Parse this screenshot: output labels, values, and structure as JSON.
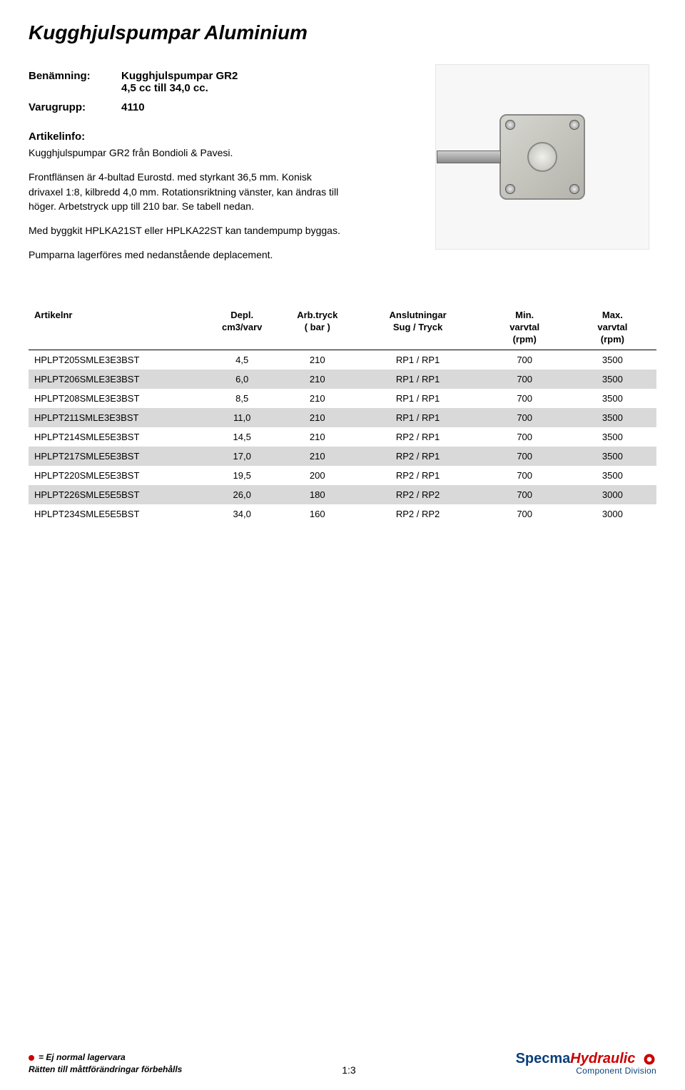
{
  "title": "Kugghjulspumpar Aluminium",
  "meta": {
    "benamning_label": "Benämning:",
    "benamning_line1": "Kugghjulspumpar GR2",
    "benamning_line2": "4,5 cc till 34,0 cc.",
    "varugrupp_label": "Varugrupp:",
    "varugrupp_value": "4110"
  },
  "info": {
    "heading": "Artikelinfo:",
    "p1": "Kugghjulspumpar GR2 från Bondioli & Pavesi.",
    "p2": "Frontflänsen är 4-bultad Eurostd. med styrkant 36,5 mm. Konisk drivaxel 1:8, kilbredd 4,0 mm. Rotationsriktning vänster, kan ändras till höger. Arbetstryck upp till 210 bar. Se tabell nedan.",
    "p3": "Med byggkit HPLKA21ST eller HPLKA22ST kan tandempump byggas.",
    "p4": "Pumparna lagerföres med nedanstående deplacement."
  },
  "table": {
    "columns": [
      {
        "line1": "Artikelnr",
        "line2": "",
        "align": "left",
        "width": "28%"
      },
      {
        "line1": "Depl.",
        "line2": "cm3/varv",
        "align": "center",
        "width": "12%"
      },
      {
        "line1": "Arb.tryck",
        "line2": "( bar )",
        "align": "center",
        "width": "12%"
      },
      {
        "line1": "Anslutningar",
        "line2": "Sug / Tryck",
        "align": "center",
        "width": "20%"
      },
      {
        "line1": "Min.",
        "line2": "varvtal",
        "line3": "(rpm)",
        "align": "center",
        "width": "14%"
      },
      {
        "line1": "Max.",
        "line2": "varvtal",
        "line3": "(rpm)",
        "align": "center",
        "width": "14%"
      }
    ],
    "rows": [
      [
        "HPLPT205SMLE3E3BST",
        "4,5",
        "210",
        "RP1 / RP1",
        "700",
        "3500"
      ],
      [
        "HPLPT206SMLE3E3BST",
        "6,0",
        "210",
        "RP1 / RP1",
        "700",
        "3500"
      ],
      [
        "HPLPT208SMLE3E3BST",
        "8,5",
        "210",
        "RP1 / RP1",
        "700",
        "3500"
      ],
      [
        "HPLPT211SMLE3E3BST",
        "11,0",
        "210",
        "RP1 / RP1",
        "700",
        "3500"
      ],
      [
        "HPLPT214SMLE5E3BST",
        "14,5",
        "210",
        "RP2 / RP1",
        "700",
        "3500"
      ],
      [
        "HPLPT217SMLE5E3BST",
        "17,0",
        "210",
        "RP2 / RP1",
        "700",
        "3500"
      ],
      [
        "HPLPT220SMLE5E3BST",
        "19,5",
        "200",
        "RP2 / RP1",
        "700",
        "3500"
      ],
      [
        "HPLPT226SMLE5E5BST",
        "26,0",
        "180",
        "RP2 / RP2",
        "700",
        "3000"
      ],
      [
        "HPLPT234SMLE5E5BST",
        "34,0",
        "160",
        "RP2 / RP2",
        "700",
        "3000"
      ]
    ],
    "alt_row_color": "#d9d9d9"
  },
  "footer": {
    "legend": "= Ej normal lagervara",
    "rights": "Rätten till måttförändringar förbehålls",
    "page_number": "1:3",
    "brand1": "Specma",
    "brand2": "Hydraulic",
    "brand_sub": "Component Division"
  },
  "colors": {
    "alt_row": "#d9d9d9",
    "brand_blue": "#0a3f7a",
    "brand_red": "#c00000",
    "text": "#000000",
    "background": "#ffffff"
  }
}
